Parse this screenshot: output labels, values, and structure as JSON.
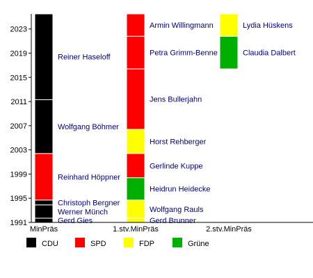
{
  "chart_data": {
    "type": "bar",
    "subtype": "timeline",
    "title": "",
    "xlabel": "",
    "ylabel": "",
    "ylim": [
      1991,
      2025.5
    ],
    "yticks": [
      1991,
      1995,
      1999,
      2003,
      2007,
      2011,
      2015,
      2019,
      2023
    ],
    "grid": false,
    "legend_position": "bottom",
    "columns": [
      {
        "label": "MinPräs",
        "terms": [
          {
            "name": "Gerd Gies",
            "party": "CDU",
            "start": 1990.9,
            "end": 1991.7
          },
          {
            "name": "Werner Münch",
            "party": "CDU",
            "start": 1991.7,
            "end": 1993.9
          },
          {
            "name": "Christoph Bergner",
            "party": "CDU",
            "start": 1993.9,
            "end": 1994.7
          },
          {
            "name": "Reinhard Höppner",
            "party": "SPD",
            "start": 1994.7,
            "end": 2002.4
          },
          {
            "name": "Wolfgang Böhmer",
            "party": "CDU",
            "start": 2002.4,
            "end": 2011.3
          },
          {
            "name": "Reiner Haseloff",
            "party": "CDU",
            "start": 2011.3,
            "end": 2025.5
          }
        ]
      },
      {
        "label": "1.stv.MinPräs",
        "terms": [
          {
            "name": "Gerd Brunner",
            "party": "FDP",
            "start": 1990.9,
            "end": 1991.7
          },
          {
            "name": "Wolfgang Rauls",
            "party": "FDP",
            "start": 1991.7,
            "end": 1994.7
          },
          {
            "name": "Heidrun Heidecke",
            "party": "Grüne",
            "start": 1994.7,
            "end": 1998.4
          },
          {
            "name": "Gerlinde Kuppe",
            "party": "SPD",
            "start": 1998.4,
            "end": 2002.4
          },
          {
            "name": "Horst Rehberger",
            "party": "FDP",
            "start": 2002.4,
            "end": 2006.4
          },
          {
            "name": "Jens Bullerjahn",
            "party": "SPD",
            "start": 2006.4,
            "end": 2016.4
          },
          {
            "name": "Petra Grimm-Benne",
            "party": "SPD",
            "start": 2016.4,
            "end": 2021.8
          },
          {
            "name": "Armin Willingmann",
            "party": "SPD",
            "start": 2021.8,
            "end": 2025.5
          }
        ]
      },
      {
        "label": "2.stv.MinPräs",
        "terms": [
          {
            "name": "Claudia Dalbert",
            "party": "Grüne",
            "start": 2016.4,
            "end": 2021.8
          },
          {
            "name": "Lydia Hüskens",
            "party": "FDP",
            "start": 2021.8,
            "end": 2025.5
          }
        ]
      }
    ],
    "legend": [
      {
        "party": "CDU",
        "color": "#000000"
      },
      {
        "party": "SPD",
        "color": "#ff0000"
      },
      {
        "party": "FDP",
        "color": "#ffff00"
      },
      {
        "party": "Grüne",
        "color": "#00b000"
      }
    ],
    "colors": {
      "CDU": "#000000",
      "SPD": "#ff0000",
      "FDP": "#ffff00",
      "Grüne": "#00b000",
      "label_text": "#00008b"
    }
  }
}
